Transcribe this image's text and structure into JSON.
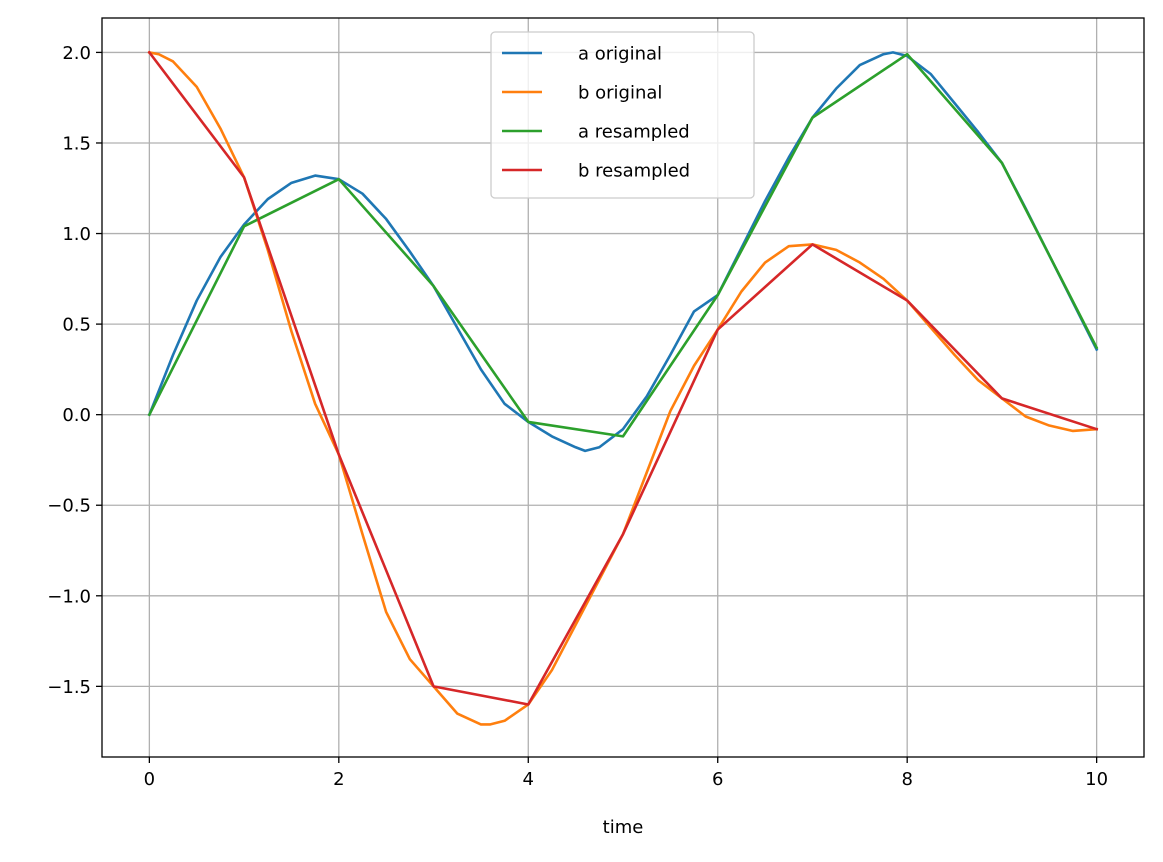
{
  "chart_data": {
    "type": "line",
    "title": "",
    "xlabel": "time",
    "ylabel": "",
    "xlim": [
      -0.5,
      10.5
    ],
    "ylim": [
      -1.89,
      2.19
    ],
    "xticks": [
      0,
      2,
      4,
      6,
      8,
      10
    ],
    "xtick_labels": [
      "0",
      "2",
      "4",
      "6",
      "8",
      "10"
    ],
    "yticks": [
      -1.5,
      -1.0,
      -0.5,
      0.0,
      0.5,
      1.0,
      1.5,
      2.0
    ],
    "ytick_labels": [
      "−1.5",
      "−1.0",
      "−0.5",
      "0.0",
      "0.5",
      "1.0",
      "1.5",
      "2.0"
    ],
    "grid": true,
    "legend_position": "upper-center",
    "series": [
      {
        "name": "a original",
        "color": "#1f77b4",
        "x": [
          0,
          0.25,
          0.5,
          0.75,
          1,
          1.25,
          1.5,
          1.75,
          2,
          2.25,
          2.5,
          2.75,
          3,
          3.25,
          3.5,
          3.75,
          4,
          4.25,
          4.5,
          4.6,
          4.75,
          5,
          5.25,
          5.5,
          5.75,
          6,
          6.25,
          6.5,
          6.75,
          7,
          7.25,
          7.5,
          7.75,
          7.85,
          8,
          8.25,
          8.5,
          8.75,
          9,
          9.25,
          9.5,
          9.75,
          10
        ],
        "y": [
          0.0,
          0.33,
          0.63,
          0.87,
          1.05,
          1.19,
          1.28,
          1.32,
          1.3,
          1.22,
          1.08,
          0.9,
          0.71,
          0.48,
          0.25,
          0.06,
          -0.04,
          -0.12,
          -0.18,
          -0.2,
          -0.18,
          -0.08,
          0.1,
          0.33,
          0.57,
          0.66,
          0.92,
          1.18,
          1.42,
          1.64,
          1.8,
          1.93,
          1.99,
          2.0,
          1.98,
          1.88,
          1.72,
          1.56,
          1.39,
          1.14,
          0.88,
          0.62,
          0.36
        ]
      },
      {
        "name": "b original",
        "color": "#ff7f0e",
        "x": [
          0,
          0.1,
          0.25,
          0.5,
          0.75,
          1,
          1.25,
          1.5,
          1.75,
          2,
          2.25,
          2.5,
          2.75,
          3,
          3.25,
          3.5,
          3.6,
          3.75,
          4,
          4.25,
          4.5,
          4.75,
          5,
          5.25,
          5.5,
          5.75,
          6,
          6.25,
          6.5,
          6.75,
          7,
          7.25,
          7.5,
          7.75,
          8,
          8.25,
          8.5,
          8.75,
          9,
          9.25,
          9.5,
          9.75,
          10
        ],
        "y": [
          2.0,
          1.99,
          1.95,
          1.81,
          1.58,
          1.31,
          0.91,
          0.46,
          0.06,
          -0.22,
          -0.66,
          -1.09,
          -1.35,
          -1.5,
          -1.65,
          -1.71,
          -1.71,
          -1.69,
          -1.6,
          -1.41,
          -1.16,
          -0.91,
          -0.66,
          -0.32,
          0.02,
          0.27,
          0.47,
          0.68,
          0.84,
          0.93,
          0.94,
          0.91,
          0.84,
          0.75,
          0.63,
          0.48,
          0.33,
          0.19,
          0.09,
          -0.01,
          -0.06,
          -0.09,
          -0.08
        ]
      },
      {
        "name": "a resampled",
        "color": "#2ca02c",
        "x": [
          0,
          1,
          2,
          3,
          4,
          5,
          6,
          7,
          8,
          9,
          10
        ],
        "y": [
          0.0,
          1.04,
          1.3,
          0.71,
          -0.04,
          -0.12,
          0.66,
          1.64,
          1.99,
          1.39,
          0.37
        ]
      },
      {
        "name": "b resampled",
        "color": "#d62728",
        "x": [
          0,
          1,
          2,
          3,
          4,
          5,
          6,
          7,
          8,
          9,
          10
        ],
        "y": [
          2.0,
          1.31,
          -0.22,
          -1.5,
          -1.6,
          -0.66,
          0.47,
          0.94,
          0.63,
          0.09,
          -0.08
        ]
      }
    ]
  }
}
